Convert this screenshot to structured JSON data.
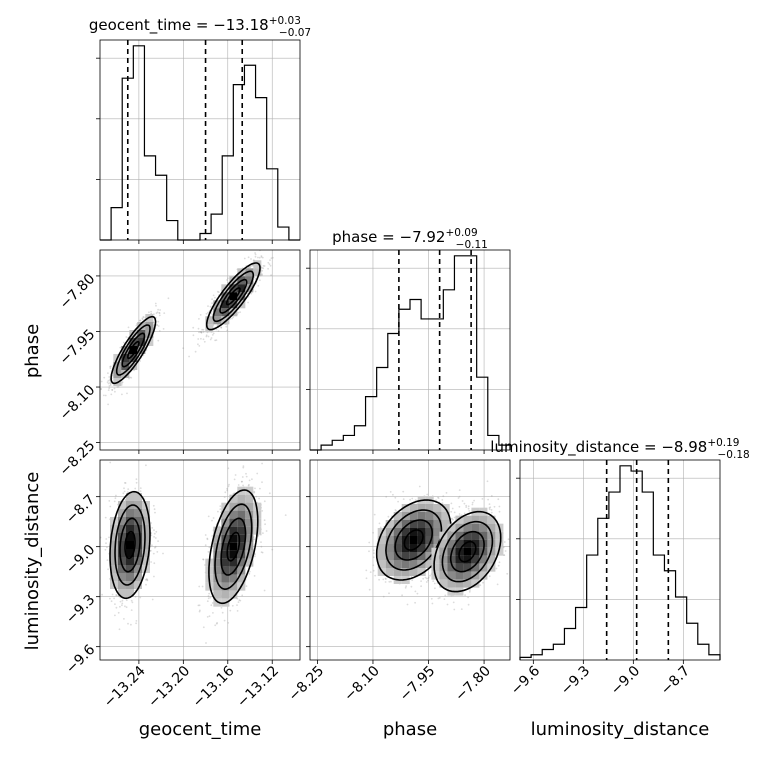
{
  "chart_data": {
    "type": "corner",
    "parameters": [
      {
        "name": "geocent_time",
        "median": "−13.18",
        "plus": "+0.03",
        "minus": "−0.07",
        "range": [
          -13.275,
          -13.095
        ],
        "quantiles": [
          -13.25,
          -13.18,
          -13.147
        ],
        "ticks": [
          -13.24,
          -13.2,
          -13.16,
          -13.12
        ],
        "tick_labels": [
          "−13.24",
          "−13.20",
          "−13.16",
          "−13.12"
        ],
        "hist_counts": [
          0,
          5,
          25,
          30,
          13,
          10,
          3,
          0,
          0,
          1,
          4,
          13,
          24,
          27,
          22,
          11,
          2,
          0
        ]
      },
      {
        "name": "phase",
        "median": "−7.92",
        "plus": "+0.09",
        "minus": "−0.11",
        "range": [
          -8.27,
          -7.73
        ],
        "quantiles": [
          -8.03,
          -7.92,
          -7.835
        ],
        "ticks": [
          -8.25,
          -8.1,
          -7.95,
          -7.8
        ],
        "tick_labels": [
          "−8.25",
          "−8.10",
          "−7.95",
          "−7.80"
        ],
        "hist_counts": [
          0,
          1,
          2,
          3,
          5,
          11,
          17,
          24,
          29,
          31,
          27,
          27,
          33,
          40,
          40,
          15,
          3,
          1
        ]
      },
      {
        "name": "luminosity_distance",
        "median": "−8.98",
        "plus": "+0.19",
        "minus": "−0.18",
        "range": [
          -9.68,
          -8.48
        ],
        "quantiles": [
          -9.16,
          -8.98,
          -8.79
        ],
        "ticks": [
          -9.6,
          -9.3,
          -9.0,
          -8.7
        ],
        "tick_labels": [
          "−9.6",
          "−9.3",
          "−9.0",
          "−8.7"
        ],
        "hist_counts": [
          0.5,
          1,
          2,
          3,
          6,
          10,
          20,
          27,
          32,
          37,
          36,
          32,
          20,
          17,
          12,
          7,
          3,
          1
        ]
      }
    ],
    "titles": [
      "geocent_time = −13.18",
      "phase = −7.92",
      "luminosity_distance = −8.98"
    ],
    "xlabels": [
      "geocent_time",
      "phase",
      "luminosity_distance"
    ],
    "ylabels": [
      "",
      "phase",
      "luminosity_distance"
    ],
    "modes": {
      "geocent_time_phase": [
        {
          "x": -13.245,
          "y": -8.0,
          "sx": 0.01,
          "sy": 0.045,
          "rho": 0.85
        },
        {
          "x": -13.155,
          "y": -7.855,
          "sx": 0.012,
          "sy": 0.045,
          "rho": 0.85
        }
      ],
      "geocent_time_luminosity_distance": [
        {
          "x": -13.248,
          "y": -8.99,
          "sx": 0.009,
          "sy": 0.16,
          "rho": 0.2
        },
        {
          "x": -13.155,
          "y": -9.0,
          "sx": 0.011,
          "sy": 0.17,
          "rho": 0.45
        }
      ],
      "phase_luminosity_distance": [
        {
          "x": -7.99,
          "y": -8.96,
          "sx": 0.05,
          "sy": 0.12,
          "rho": 0.35
        },
        {
          "x": -7.845,
          "y": -9.03,
          "sx": 0.045,
          "sy": 0.12,
          "rho": 0.35
        }
      ]
    },
    "grid": true
  }
}
